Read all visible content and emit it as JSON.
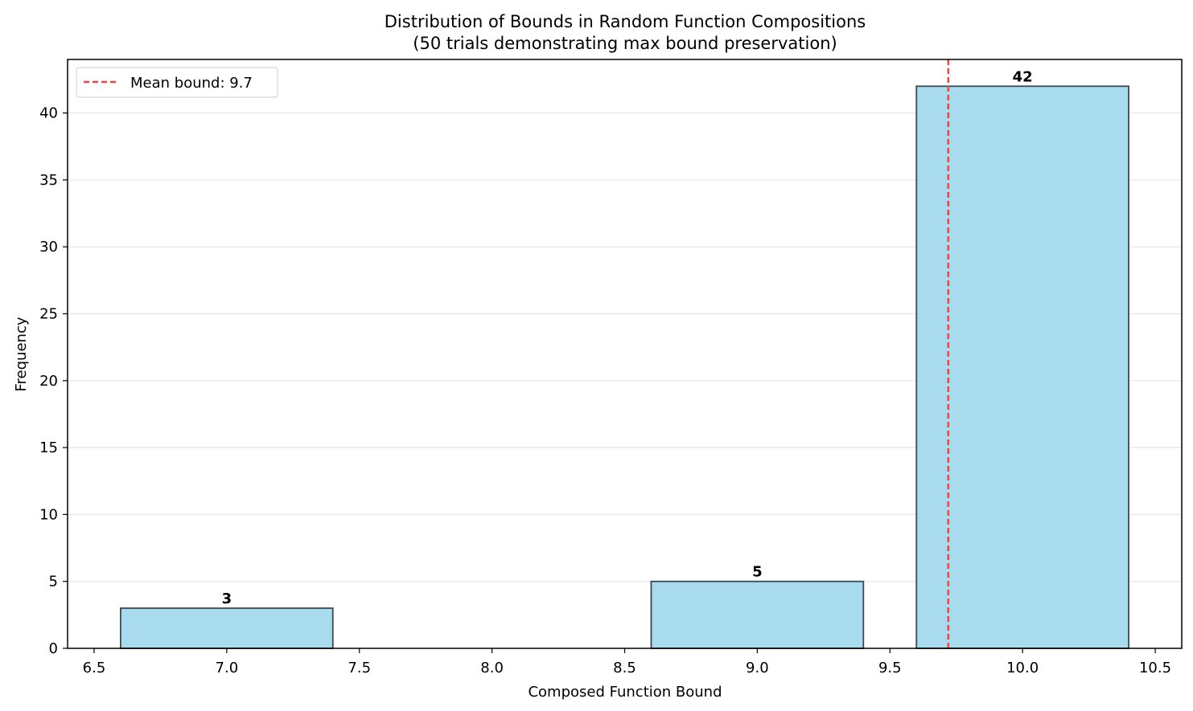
{
  "chart_data": {
    "type": "bar",
    "title": "Distribution of Bounds in Random Function Compositions",
    "subtitle": "(50 trials demonstrating max bound preservation)",
    "xlabel": "Composed Function Bound",
    "ylabel": "Frequency",
    "xlim": [
      6.4,
      10.6
    ],
    "ylim": [
      0,
      44
    ],
    "xticks": [
      "6.5",
      "7.0",
      "7.5",
      "8.0",
      "8.5",
      "9.0",
      "9.5",
      "10.0",
      "10.5"
    ],
    "yticks": [
      "0",
      "5",
      "10",
      "15",
      "20",
      "25",
      "30",
      "35",
      "40"
    ],
    "grid": "y",
    "bars": [
      {
        "x_start": 6.6,
        "x_end": 7.4,
        "value": 3,
        "label": "3"
      },
      {
        "x_start": 8.6,
        "x_end": 9.4,
        "value": 5,
        "label": "5"
      },
      {
        "x_start": 9.6,
        "x_end": 10.4,
        "value": 42,
        "label": "42"
      }
    ],
    "mean_line": {
      "value": 9.72,
      "label": "Mean bound: 9.7"
    },
    "legend_position": "top-left",
    "colors": {
      "bar_fill": "#a8dbee",
      "bar_edge": "#3a4a52",
      "mean_line": "#ee4444",
      "grid": "#e6e6e6"
    }
  }
}
